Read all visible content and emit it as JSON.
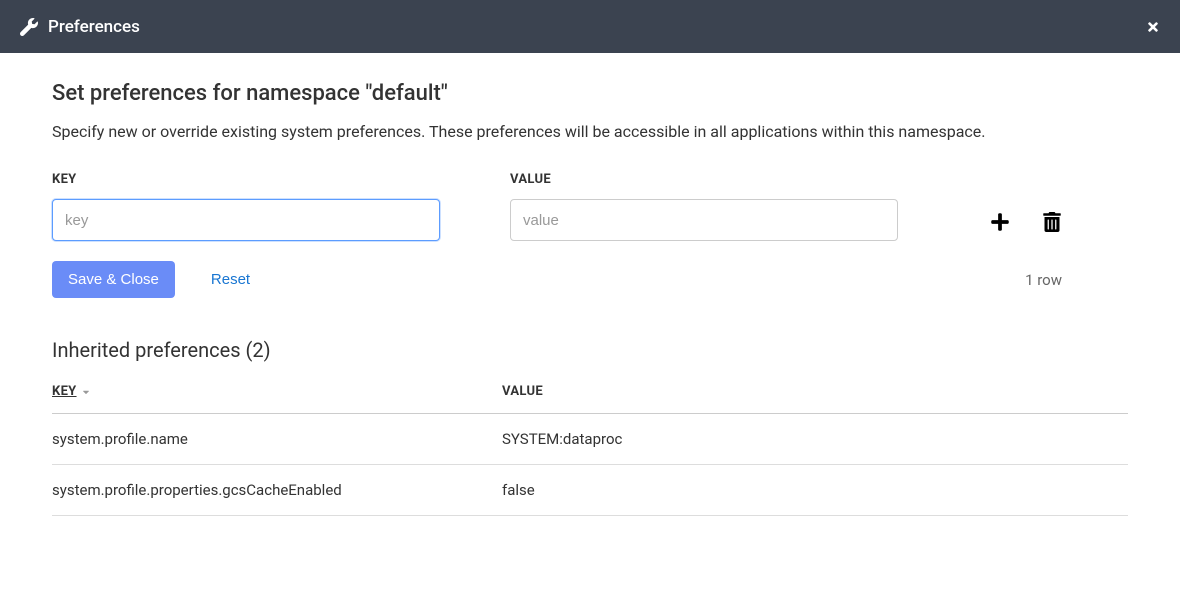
{
  "header": {
    "title": "Preferences"
  },
  "page": {
    "title": "Set preferences for namespace \"default\"",
    "description": "Specify new or override existing system preferences. These preferences will be accessible in all applications within this namespace."
  },
  "form": {
    "key_label": "KEY",
    "value_label": "VALUE",
    "key_placeholder": "key",
    "value_placeholder": "value",
    "key_value": "",
    "value_value": ""
  },
  "buttons": {
    "save_close": "Save & Close",
    "reset": "Reset"
  },
  "row_count": "1 row",
  "inherited": {
    "title": "Inherited preferences (2)",
    "columns": {
      "key": "KEY",
      "value": "VALUE"
    },
    "rows": [
      {
        "key": "system.profile.name",
        "value": "SYSTEM:dataproc"
      },
      {
        "key": "system.profile.properties.gcsCacheEnabled",
        "value": "false"
      }
    ]
  },
  "colors": {
    "header_bg": "#3b4350",
    "primary_btn": "#6a8cf7",
    "link": "#1976d2",
    "focus_border": "#5c9cff",
    "text": "#333333"
  }
}
